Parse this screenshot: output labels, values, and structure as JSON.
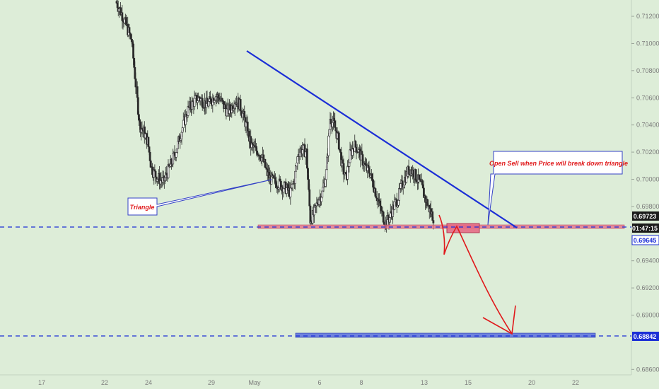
{
  "colors": {
    "background": "#ddedd8",
    "candle": "#2b2b2b",
    "trendline": "#1b2ed6",
    "support_zone": "#e56a86",
    "target_zone": "#4a5fe0",
    "dashed_level": "#1b2ed6",
    "annotation_text": "#e0191b",
    "arrow": "#e0191b",
    "axis_text": "#7a7a7a"
  },
  "axis": {
    "y_ticks": [
      "0.71200",
      "0.71000",
      "0.70800",
      "0.70600",
      "0.70400",
      "0.70200",
      "0.70000",
      "0.69800",
      "0.69400",
      "0.69200",
      "0.69000",
      "0.68600"
    ],
    "x_ticks": [
      "17",
      "22",
      "24",
      "29",
      "May",
      "6",
      "8",
      "13",
      "15",
      "20",
      "22"
    ],
    "badges": {
      "last_price": "0.69723",
      "countdown": "01:47:15",
      "support_level": "0.69645",
      "target_level": "0.68842"
    }
  },
  "annotations": {
    "triangle_label": "Triangle",
    "sell_note": "Open Sell when Price will break down triangle"
  },
  "chart_data": {
    "type": "candlestick",
    "symbol_interval": "intraday",
    "ylim": [
      0.6856,
      0.7132
    ],
    "x_axis_labels": [
      "17",
      "22",
      "24",
      "29",
      "May",
      "6",
      "8",
      "13",
      "15",
      "20",
      "22"
    ],
    "price_path_approx": [
      0.7131,
      0.7125,
      0.7118,
      0.711,
      0.7102,
      0.707,
      0.704,
      0.7035,
      0.7028,
      0.7008,
      0.7003,
      0.7,
      0.6998,
      0.7005,
      0.7012,
      0.702,
      0.703,
      0.704,
      0.705,
      0.7055,
      0.7058,
      0.706,
      0.7057,
      0.7055,
      0.7058,
      0.7062,
      0.706,
      0.7055,
      0.705,
      0.7052,
      0.7058,
      0.7056,
      0.7048,
      0.7038,
      0.7025,
      0.7022,
      0.702,
      0.7015,
      0.7005,
      0.7,
      0.6998,
      0.6997,
      0.6995,
      0.6993,
      0.699,
      0.7,
      0.702,
      0.7022,
      0.702,
      0.697,
      0.6975,
      0.6985,
      0.699,
      0.7005,
      0.7045,
      0.704,
      0.703,
      0.701,
      0.7,
      0.7018,
      0.7025,
      0.7022,
      0.7015,
      0.7008,
      0.7005,
      0.6995,
      0.6985,
      0.6975,
      0.6968,
      0.6972,
      0.698,
      0.6985,
      0.6995,
      0.7002,
      0.7008,
      0.7005,
      0.7,
      0.6995,
      0.6985,
      0.6978,
      0.6972
    ],
    "trendline": {
      "from": [
        0.7093,
        "late April"
      ],
      "to": [
        0.6963,
        "about 18 May"
      ]
    },
    "levels": [
      {
        "name": "support",
        "value": 0.69645
      },
      {
        "name": "target",
        "value": 0.68842
      }
    ],
    "last_price": 0.69723
  }
}
